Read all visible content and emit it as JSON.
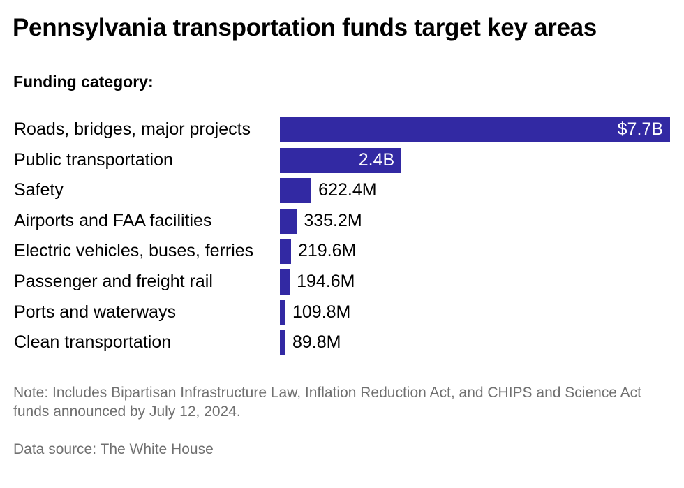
{
  "title": "Pennsylvania transportation funds target key areas",
  "subtitle": "Funding category:",
  "note": "Note: Includes Bipartisan Infrastructure Law, Inflation Reduction Act, and CHIPS and Science Act funds announced by July 12, 2024.",
  "source": "Data source: The White House",
  "colors": {
    "bar": "#3229a3",
    "muted_text": "#707070"
  },
  "chart_data": {
    "type": "bar",
    "orientation": "horizontal",
    "title": "Pennsylvania transportation funds target key areas",
    "subtitle": "Funding category:",
    "unit": "USD",
    "categories": [
      "Roads, bridges, major projects",
      "Public transportation",
      "Safety",
      "Airports and FAA facilities",
      "Electric vehicles, buses, ferries",
      "Passenger and freight rail",
      "Ports and waterways",
      "Clean transportation"
    ],
    "values": [
      7700000000,
      2400000000,
      622400000,
      335200000,
      219600000,
      194600000,
      109800000,
      89800000
    ],
    "labels": [
      "$7.7B",
      "2.4B",
      "622.4M",
      "335.2M",
      "219.6M",
      "194.6M",
      "109.8M",
      "89.8M"
    ],
    "xlim": [
      0,
      7700000000
    ],
    "grid": false,
    "legend": "none"
  }
}
